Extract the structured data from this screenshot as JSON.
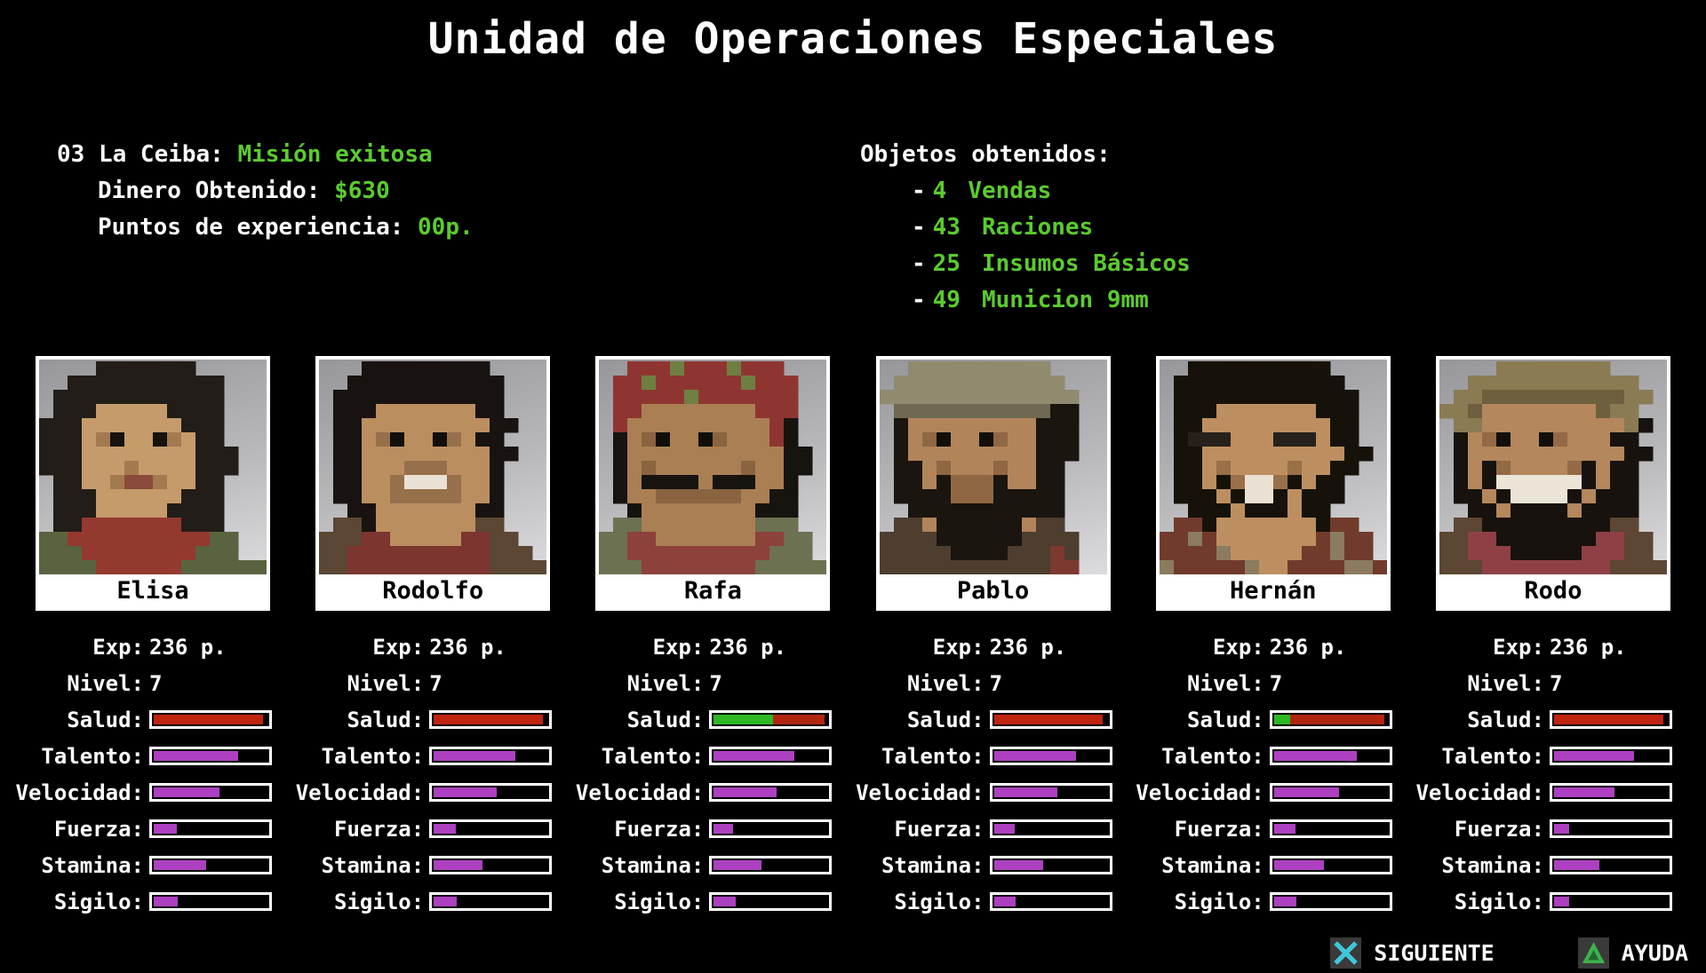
{
  "colors": {
    "background": "#000000",
    "text_white": "#ffffff",
    "text_green": "#5bcb2e",
    "bar_red": "#c02410",
    "bar_red_dark": "#b22511",
    "bar_green": "#2eb826",
    "bar_purple": "#ad40c0",
    "icon_cyan": "#3ec7da",
    "icon_green": "#3db14d",
    "icon_bg": "#3a3a3a"
  },
  "title": "Unidad de Operaciones Especiales",
  "mission": {
    "location_label": "03 La Ceiba:",
    "status_value": "Misión exitosa",
    "money_label": "Dinero Obtenido:",
    "money_value": "$630",
    "xp_label": "Puntos de experiencia:",
    "xp_value": "00p."
  },
  "items": {
    "header": "Objetos obtenidos:",
    "dash": "-",
    "list": [
      {
        "qty": "4",
        "name": "Vendas"
      },
      {
        "qty": "43",
        "name": "Raciones"
      },
      {
        "qty": "25",
        "name": "Insumos Básicos"
      },
      {
        "qty": "49",
        "name": "Municion 9mm"
      }
    ]
  },
  "stats": {
    "exp_label": "Exp:",
    "nivel_label": "Nivel:",
    "bar_rows": [
      {
        "key": "salud",
        "label": "Salud:"
      },
      {
        "key": "talento",
        "label": "Talento:"
      },
      {
        "key": "velocidad",
        "label": "Velocidad:"
      },
      {
        "key": "fuerza",
        "label": "Fuerza:"
      },
      {
        "key": "stamina",
        "label": "Stamina:"
      },
      {
        "key": "sigilo",
        "label": "Sigilo:"
      }
    ]
  },
  "characters": [
    {
      "name": "Elisa",
      "exp": "236 p.",
      "nivel": "7",
      "salud_segments": [
        {
          "color": "bar_red",
          "pct": 96
        }
      ],
      "bars": {
        "talento": 74,
        "velocidad": 58,
        "fuerza": 20,
        "stamina": 46,
        "sigilo": 21
      },
      "portrait": {
        "palette": {
          "k": "#221d18",
          "s": "#c69b6b",
          "d": "#a37a50",
          "e": "#16120e",
          "m": "#8a4a3c",
          "r": "#94392f",
          "g": "#5a6340"
        },
        "grid": [
          "....kkkkkkk.....",
          "..kkkkkkkkkkk...",
          ".kkkkkkkkkkkk...",
          ".kkkssssskkkk...",
          "kkkssssssskkk...",
          "kkksdessedskk...",
          "kkksssssssskkk..",
          "kkksssdsssskkk..",
          ".kkssdmmdsskk...",
          ".kkksssssskkk...",
          ".kkkssssskkkk...",
          ".kkrrrrrrrkkk...",
          "ggrrrrrrrrrrgg..",
          "gggrrrrrrrrggg..",
          "ggggrrrrrrgggggg"
        ]
      }
    },
    {
      "name": "Rodolfo",
      "exp": "236 p.",
      "nivel": "7",
      "salud_segments": [
        {
          "color": "bar_red",
          "pct": 96
        }
      ],
      "bars": {
        "talento": 72,
        "velocidad": 55,
        "fuerza": 19,
        "stamina": 43,
        "sigilo": 20
      },
      "portrait": {
        "palette": {
          "k": "#181310",
          "s": "#bb8e60",
          "d": "#96704a",
          "e": "#120f0c",
          "w": "#e9e1d4",
          "r": "#7d3530",
          "b": "#5c4734"
        },
        "grid": [
          "...kkkkkkkkk....",
          "..kkkkkkkkkkk...",
          ".kkkkkkkkkkkk...",
          ".kkkssssssskk...",
          ".kkssssssssskk..",
          ".kksdessedskk...",
          ".kkssssssssskk..",
          ".kksssdddsssk...",
          ".kkssdwwwdssk...",
          ".kkssdddddssk...",
          "..kkssssssskk...",
          ".bbksssssssbb...",
          "bbbrrsssssrrbb..",
          "bbrrrrrrrrrrbbb.",
          "bbrrrrrrrrrrbbbb"
        ]
      }
    },
    {
      "name": "Rafa",
      "exp": "236 p.",
      "nivel": "7",
      "salud_segments": [
        {
          "color": "bar_green",
          "pct": 52
        },
        {
          "color": "bar_red_dark",
          "pct": 45
        }
      ],
      "bars": {
        "talento": 71,
        "velocidad": 55,
        "fuerza": 17,
        "stamina": 42,
        "sigilo": 19
      },
      "portrait": {
        "palette": {
          "k": "#17130e",
          "s": "#aa7f53",
          "d": "#8a6440",
          "e": "#110e0a",
          "n": "#8f3531",
          "p": "#6f7f41",
          "r": "#8c423b",
          "g": "#6c7152"
        },
        "grid": [
          "..nnnpnnnpnnn...",
          ".nnpnnnnnnpnnn..",
          ".nnnnnpnnnnnnn..",
          ".nnssssssssnnn..",
          ".nssssssssssnk..",
          ".ksdessedsssnk..",
          ".kssssssssssskk.",
          ".ksdssssssdsskk.",
          ".kskkkkskkkssk..",
          ".kssddddddsskk..",
          "..ksssssssskkk..",
          ".ggssssssssggg..",
          "ggrrsssssssrrgg.",
          "ggrrrrrrrrrrggg.",
          "gggrrrrrrrrggggg"
        ]
      }
    },
    {
      "name": "Pablo",
      "exp": "236 p.",
      "nivel": "7",
      "salud_segments": [
        {
          "color": "bar_red",
          "pct": 96
        }
      ],
      "bars": {
        "talento": 72,
        "velocidad": 56,
        "fuerza": 18,
        "stamina": 43,
        "sigilo": 19
      },
      "portrait": {
        "palette": {
          "k": "#1a150f",
          "s": "#b2845a",
          "d": "#8f6743",
          "e": "#120f0b",
          "c": "#908a6f",
          "C": "#6f6952",
          "b": "#4e3e2f",
          "r": "#7d392e"
        },
        "grid": [
          "..cccccccccc....",
          ".cccccccccccc...",
          "cccccccccccccc..",
          ".CCCCCCCCCCCkk..",
          ".kssssssssskkk..",
          ".ksdessedsskkk..",
          ".kssssssssskkk..",
          ".kksdsssdsskk...",
          ".kkskdddksskk...",
          ".kkkkdddkkkkk...",
          "..kkkkkkkkkkk...",
          ".bbskkkkkksbb...",
          "bbbbkkkkkkbbbb..",
          "bbbbbkkkkbbbrb..",
          "bbbbbbbbbbbbrr.."
        ]
      }
    },
    {
      "name": "Hernán",
      "exp": "236 p.",
      "nivel": "7",
      "salud_segments": [
        {
          "color": "bar_green",
          "pct": 14
        },
        {
          "color": "bar_red_dark",
          "pct": 83
        }
      ],
      "bars": {
        "talento": 73,
        "velocidad": 57,
        "fuerza": 19,
        "stamina": 44,
        "sigilo": 20
      },
      "portrait": {
        "palette": {
          "k": "#161209",
          "s": "#bd8f60",
          "d": "#9a7049",
          "e": "#100d0a",
          "G": "#26211b",
          "w": "#e9e1d4",
          "r": "#713b2c",
          "t": "#8b7b5f"
        },
        "grid": [
          "..kkkkkkkkkk....",
          ".kkkkkkkkkkkk...",
          ".kkkkkkkkkkkkk..",
          ".kkkssssssskkk..",
          ".kkssssssssskk..",
          ".kGGGsssGGGskk..",
          ".kksssssssssskk.",
          ".kksdssssdsskk..",
          ".kkskdwwdkskk...",
          ".kkkskwwkskkk...",
          "..kkkskkkskk....",
          ".rrkssssssskrr..",
          "rrtrsssssssrtrr.",
          "rrrrtsssssrrtrr.",
          "trrrrrtssrrrrttr"
        ]
      }
    },
    {
      "name": "Rodo",
      "exp": "236 p.",
      "nivel": "7",
      "salud_segments": [
        {
          "color": "bar_red",
          "pct": 96
        }
      ],
      "bars": {
        "talento": 70,
        "velocidad": 53,
        "fuerza": 13,
        "stamina": 40,
        "sigilo": 13
      },
      "portrait": {
        "palette": {
          "k": "#17120d",
          "s": "#b4875c",
          "d": "#936a45",
          "e": "#110e0b",
          "c": "#8b7b53",
          "C": "#6e5f3f",
          "w": "#ece4d6",
          "r": "#8e4045",
          "b": "#5d4633"
        },
        "grid": [
          "....cccccccc....",
          "..cccccccccccc..",
          ".ccCCCCCCCCCCcc.",
          "ccCssssssssCcc..",
          ".ccssssssssssck.",
          ".ksdessedssskk..",
          ".kssssssssssskk.",
          ".kskdssssdkskk..",
          ".kskwwwwwwkskk..",
          ".kkskwwwwkskkk..",
          "..kkskkkkskkkk..",
          ".bbkkkkkkkkkbb..",
          "bbrrkkkkkkkrrbb.",
          "bbrrrkkkkkrrrbb.",
          "bbbrrrrrrrrrbbbb"
        ]
      }
    }
  ],
  "footer": {
    "siguiente_label": "SIGUIENTE",
    "ayuda_label": "AYUDA"
  }
}
